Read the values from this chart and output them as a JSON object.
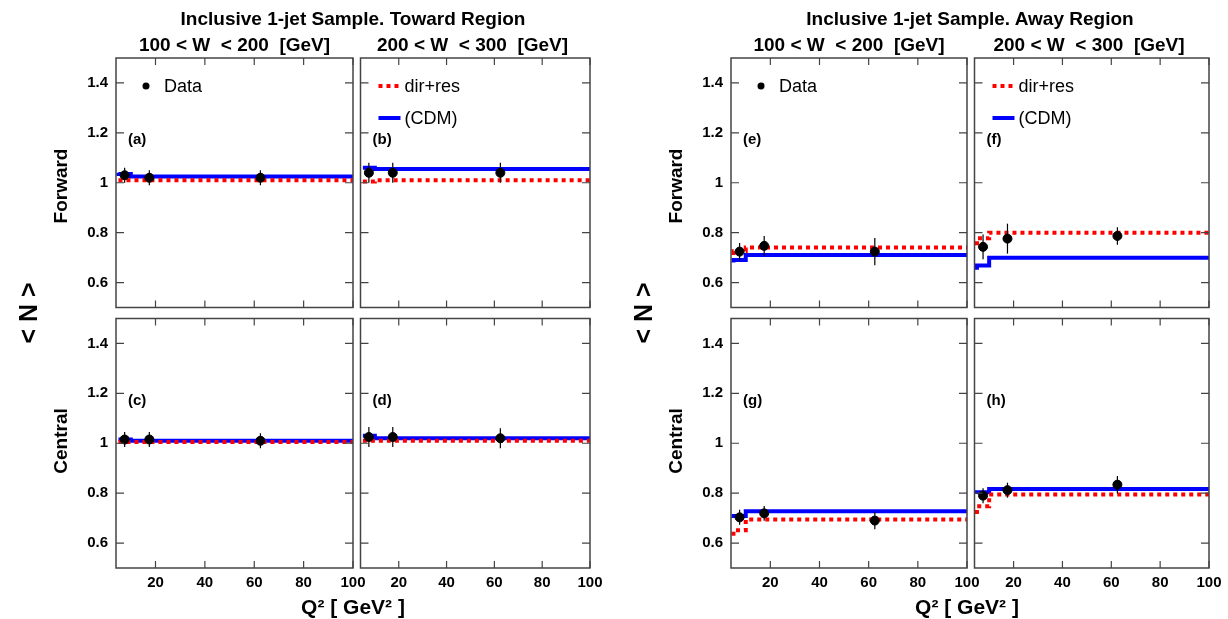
{
  "chart_data": [
    {
      "type": "scatter",
      "title": "Inclusive 1-jet Sample. Toward Region",
      "subtitle": "100 < W  < 200  [GeV]",
      "ylabel": "Forward",
      "annotations": [
        "(a)",
        "< N >"
      ],
      "xlim": [
        4,
        100
      ],
      "xticks": [
        20,
        40,
        60,
        80,
        100
      ],
      "ylim": [
        0.5,
        1.5
      ],
      "yticks": [
        0.6,
        0.8,
        1,
        1.2,
        1.4
      ],
      "grid": false,
      "legend": "top left",
      "tick_labels": "y",
      "series": [
        {
          "name": "Data",
          "color": "#000000",
          "marker": "circle",
          "x": [
            7.5,
            17.5,
            62.5
          ],
          "values": [
            1.03,
            1.02,
            1.02
          ],
          "errors": [
            0.03,
            0.03,
            0.03
          ]
        },
        {
          "type": "step",
          "color": "#ff0000",
          "line_style": "dotted",
          "x": [
            5,
            10,
            25,
            100
          ],
          "values": [
            1.01,
            1.01,
            1.01,
            1.01
          ]
        },
        {
          "type": "step",
          "color": "#0000ff",
          "line_style": "solid",
          "x": [
            5,
            10,
            25,
            100
          ],
          "values": [
            1.04,
            1.035,
            1.025,
            1.025
          ]
        }
      ]
    },
    {
      "type": "scatter",
      "subtitle": "200 < W  < 300  [GeV]",
      "annotations": [
        "(b)"
      ],
      "xlim": [
        4,
        100
      ],
      "xticks": [
        20,
        40,
        60,
        80,
        100
      ],
      "ylim": [
        0.5,
        1.5
      ],
      "yticks": [
        0.6,
        0.8,
        1,
        1.2,
        1.4
      ],
      "grid": false,
      "legend": "top left",
      "tick_labels": false,
      "series": [
        {
          "color": "#000000",
          "marker": "circle",
          "x": [
            7.5,
            17.5,
            62.5
          ],
          "values": [
            1.04,
            1.04,
            1.04
          ],
          "errors": [
            0.04,
            0.04,
            0.04
          ]
        },
        {
          "name": "dir+res",
          "type": "step",
          "color": "#ff0000",
          "line_style": "dotted",
          "x": [
            5,
            10,
            25,
            100
          ],
          "values": [
            1.005,
            1.005,
            1.01,
            1.01
          ]
        },
        {
          "name": "(CDM)",
          "type": "step",
          "color": "#0000ff",
          "line_style": "solid",
          "x": [
            5,
            10,
            25,
            100
          ],
          "values": [
            1.06,
            1.06,
            1.055,
            1.055
          ]
        }
      ]
    },
    {
      "type": "scatter",
      "xlabel": "Q² [ GeV² ]",
      "ylabel": "Central",
      "annotations": [
        "(c)"
      ],
      "xlim": [
        4,
        100
      ],
      "xticks": [
        20,
        40,
        60,
        80,
        100
      ],
      "ylim": [
        0.5,
        1.5
      ],
      "yticks": [
        0.6,
        0.8,
        1,
        1.2,
        1.4
      ],
      "grid": false,
      "series": [
        {
          "color": "#000000",
          "marker": "circle",
          "x": [
            7.5,
            17.5,
            62.5
          ],
          "values": [
            1.015,
            1.015,
            1.01
          ],
          "errors": [
            0.03,
            0.03,
            0.03
          ]
        },
        {
          "type": "step",
          "color": "#ff0000",
          "line_style": "dotted",
          "x": [
            5,
            10,
            25,
            100
          ],
          "values": [
            1.005,
            1.005,
            1.005,
            1.005
          ]
        },
        {
          "type": "step",
          "color": "#0000ff",
          "line_style": "solid",
          "x": [
            5,
            10,
            25,
            100
          ],
          "values": [
            1.015,
            1.015,
            1.01,
            1.01
          ]
        }
      ]
    },
    {
      "type": "scatter",
      "annotations": [
        "(d)"
      ],
      "xlim": [
        4,
        100
      ],
      "xticks": [
        20,
        40,
        60,
        80,
        100
      ],
      "ylim": [
        0.5,
        1.5
      ],
      "yticks": [
        0.6,
        0.8,
        1,
        1.2,
        1.4
      ],
      "grid": false,
      "tick_labels": "x",
      "series": [
        {
          "color": "#000000",
          "marker": "circle",
          "x": [
            7.5,
            17.5,
            62.5
          ],
          "values": [
            1.025,
            1.025,
            1.02
          ],
          "errors": [
            0.04,
            0.04,
            0.04
          ]
        },
        {
          "type": "step",
          "color": "#ff0000",
          "line_style": "dotted",
          "x": [
            5,
            10,
            25,
            100
          ],
          "values": [
            1.01,
            1.01,
            1.01,
            1.01
          ]
        },
        {
          "type": "step",
          "color": "#0000ff",
          "line_style": "solid",
          "x": [
            5,
            10,
            25,
            100
          ],
          "values": [
            1.03,
            1.03,
            1.02,
            1.02
          ]
        }
      ]
    },
    {
      "type": "scatter",
      "title": "Inclusive 1-jet Sample. Away Region",
      "subtitle": "100 < W  < 200  [GeV]",
      "ylabel": "Forward",
      "annotations": [
        "(e)",
        "< N >"
      ],
      "xlim": [
        4,
        100
      ],
      "xticks": [
        20,
        40,
        60,
        80,
        100
      ],
      "ylim": [
        0.5,
        1.5
      ],
      "yticks": [
        0.6,
        0.8,
        1,
        1.2,
        1.4
      ],
      "grid": false,
      "legend": "top left",
      "tick_labels": "y",
      "series": [
        {
          "name": "Data",
          "color": "#000000",
          "marker": "circle",
          "x": [
            7.5,
            17.5,
            62.5
          ],
          "values": [
            0.724,
            0.747,
            0.724
          ],
          "errors": [
            0.035,
            0.04,
            0.055
          ]
        },
        {
          "type": "step",
          "color": "#ff0000",
          "line_style": "dotted",
          "x": [
            5,
            10,
            25,
            100
          ],
          "values": [
            0.71,
            0.725,
            0.74,
            0.74
          ]
        },
        {
          "type": "step",
          "color": "#0000ff",
          "line_style": "solid",
          "x": [
            5,
            10,
            25,
            100
          ],
          "values": [
            0.68,
            0.69,
            0.71,
            0.71
          ]
        }
      ]
    },
    {
      "type": "scatter",
      "subtitle": "200 < W  < 300  [GeV]",
      "annotations": [
        "(f)"
      ],
      "xlim": [
        4,
        100
      ],
      "xticks": [
        20,
        40,
        60,
        80,
        100
      ],
      "ylim": [
        0.5,
        1.5
      ],
      "yticks": [
        0.6,
        0.8,
        1,
        1.2,
        1.4
      ],
      "grid": false,
      "legend": "top left",
      "tick_labels": false,
      "series": [
        {
          "color": "#000000",
          "marker": "circle",
          "x": [
            7.5,
            17.5,
            62.5
          ],
          "values": [
            0.743,
            0.776,
            0.787
          ],
          "errors": [
            0.05,
            0.06,
            0.035
          ]
        },
        {
          "name": "dir+res",
          "type": "step",
          "color": "#ff0000",
          "line_style": "dotted",
          "x": [
            5,
            10,
            25,
            100
          ],
          "values": [
            0.75,
            0.778,
            0.8,
            0.8
          ]
        },
        {
          "name": "(CDM)",
          "type": "step",
          "color": "#0000ff",
          "line_style": "solid",
          "x": [
            5,
            10,
            25,
            100
          ],
          "values": [
            0.651,
            0.668,
            0.699,
            0.699
          ]
        }
      ]
    },
    {
      "type": "scatter",
      "xlabel": "Q² [ GeV² ]",
      "ylabel": "Central",
      "annotations": [
        "(g)"
      ],
      "xlim": [
        4,
        100
      ],
      "xticks": [
        20,
        40,
        60,
        80,
        100
      ],
      "ylim": [
        0.5,
        1.5
      ],
      "yticks": [
        0.6,
        0.8,
        1,
        1.2,
        1.4
      ],
      "grid": false,
      "series": [
        {
          "color": "#000000",
          "marker": "circle",
          "x": [
            7.5,
            17.5,
            62.5
          ],
          "values": [
            0.703,
            0.719,
            0.69
          ],
          "errors": [
            0.03,
            0.03,
            0.035
          ]
        },
        {
          "type": "step",
          "color": "#ff0000",
          "line_style": "dotted",
          "x": [
            5,
            10,
            25,
            100
          ],
          "values": [
            0.629,
            0.651,
            0.694,
            0.694
          ]
        },
        {
          "type": "step",
          "color": "#0000ff",
          "line_style": "solid",
          "x": [
            5,
            10,
            25,
            100
          ],
          "values": [
            0.7,
            0.708,
            0.727,
            0.727
          ]
        }
      ]
    },
    {
      "type": "scatter",
      "annotations": [
        "(h)"
      ],
      "xlim": [
        4,
        100
      ],
      "xticks": [
        20,
        40,
        60,
        80,
        100
      ],
      "ylim": [
        0.5,
        1.5
      ],
      "yticks": [
        0.6,
        0.8,
        1,
        1.2,
        1.4
      ],
      "grid": false,
      "tick_labels": "x",
      "series": [
        {
          "color": "#000000",
          "marker": "circle",
          "x": [
            7.5,
            17.5,
            62.5
          ],
          "values": [
            0.79,
            0.812,
            0.834
          ],
          "errors": [
            0.03,
            0.03,
            0.035
          ]
        },
        {
          "type": "step",
          "color": "#ff0000",
          "line_style": "dotted",
          "x": [
            5,
            10,
            25,
            100
          ],
          "values": [
            0.716,
            0.747,
            0.795,
            0.795
          ]
        },
        {
          "type": "step",
          "color": "#0000ff",
          "line_style": "solid",
          "x": [
            5,
            10,
            25,
            100
          ],
          "values": [
            0.797,
            0.804,
            0.817,
            0.817
          ]
        }
      ]
    }
  ]
}
